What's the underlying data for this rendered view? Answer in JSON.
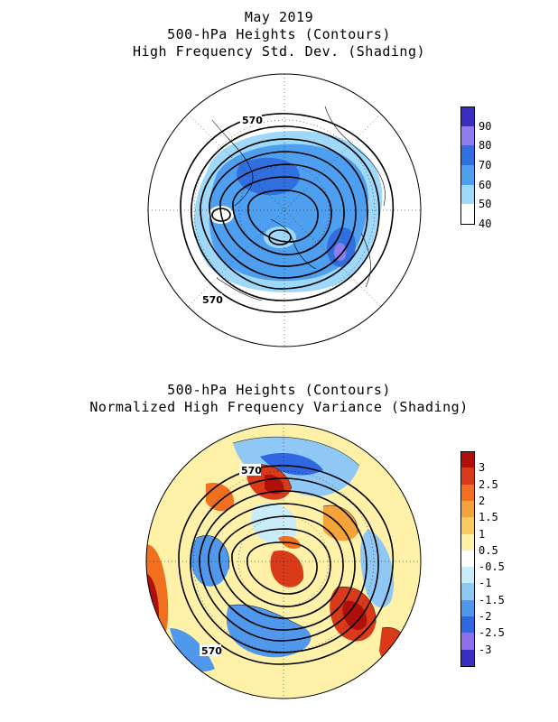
{
  "titles": {
    "top_line1": "May 2019",
    "top_line2": "500-hPa Heights (Contours)",
    "top_line3": "High Frequency Std. Dev. (Shading)",
    "bottom_line1": "500-hPa Heights (Contours)",
    "bottom_line2": "Normalized High Frequency Variance (Shading)"
  },
  "top_map": {
    "contour_labels": [
      "570",
      "570"
    ],
    "colorbar": {
      "labels": [
        "90",
        "80",
        "70",
        "60",
        "50",
        "40"
      ],
      "colors": [
        "#3a2fc0",
        "#8f7df0",
        "#2f6fe0",
        "#4f9ff0",
        "#9fd8f8",
        "#ffffff"
      ]
    }
  },
  "bottom_map": {
    "contour_labels": [
      "570",
      "570"
    ],
    "colorbar": {
      "labels": [
        "3",
        "2.5",
        "2",
        "1.5",
        "1",
        "0.5",
        "-0.5",
        "-1",
        "-1.5",
        "-2",
        "-2.5",
        "-3"
      ],
      "colors": [
        "#b0100c",
        "#d83a1a",
        "#f07020",
        "#f4a23a",
        "#f8cc60",
        "#fff2a8",
        "#ffffff",
        "#c8ecfa",
        "#8fc8f4",
        "#4f98ec",
        "#2f68e0",
        "#8f70e8",
        "#3a2fc0"
      ]
    }
  }
}
